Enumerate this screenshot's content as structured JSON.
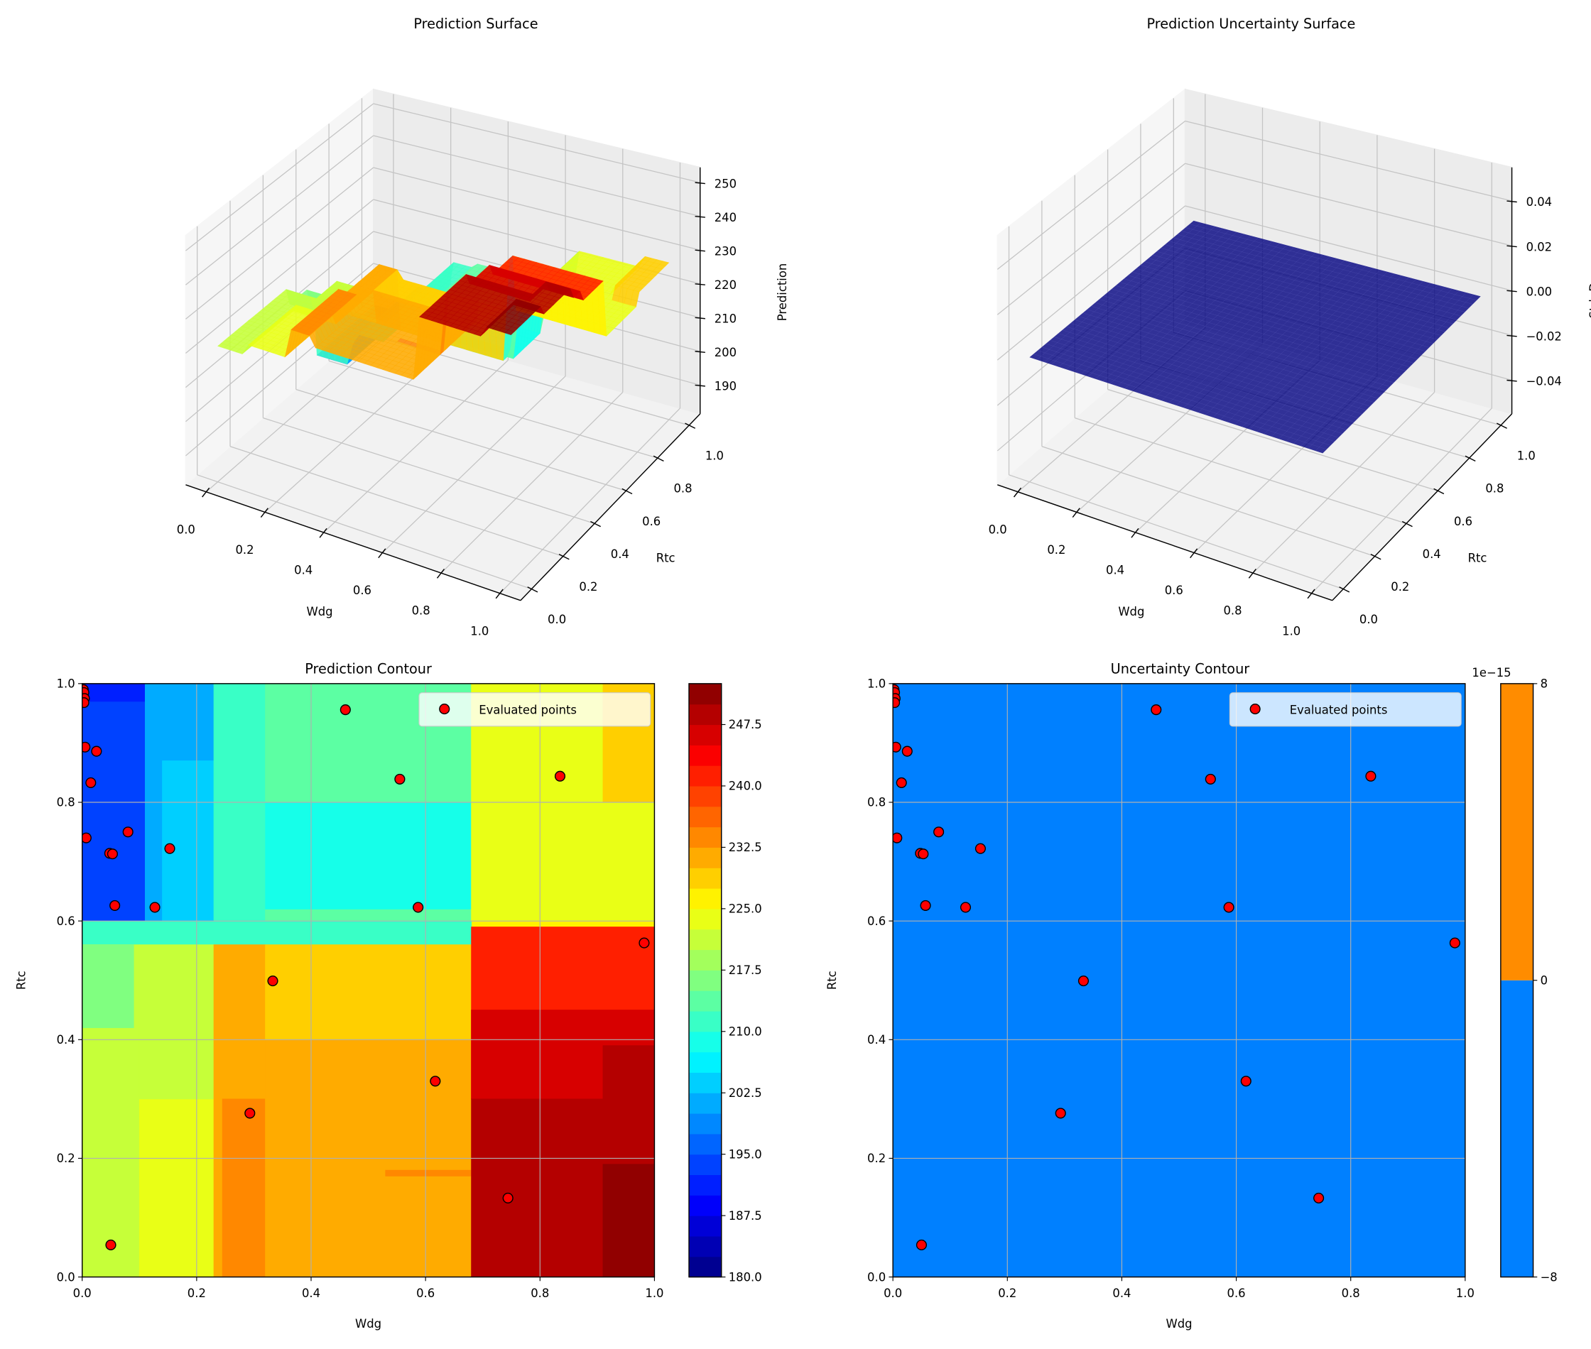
{
  "chart_data": [
    {
      "type": "surface3d",
      "title": "Prediction Surface",
      "xlabel": "Wdg",
      "ylabel": "Rtc",
      "zlabel": "Prediction",
      "xticks": [
        "0.0",
        "0.2",
        "0.4",
        "0.6",
        "0.8",
        "1.0"
      ],
      "yticks": [
        "0.0",
        "0.2",
        "0.4",
        "0.6",
        "0.8",
        "1.0"
      ],
      "ztick_values": [
        190,
        200,
        210,
        220,
        230,
        240,
        250
      ],
      "zticks": [
        "190",
        "200",
        "210",
        "220",
        "230",
        "240",
        "250"
      ],
      "zlim": [
        181.5,
        254.5
      ],
      "colormap": "jet",
      "surface": "same prediction field as Prediction Contour"
    },
    {
      "type": "surface3d",
      "title": "Prediction Uncertainty Surface",
      "xlabel": "Wdg",
      "ylabel": "Rtc",
      "zlabel": "Std. Dev.",
      "xticks": [
        "0.0",
        "0.2",
        "0.4",
        "0.6",
        "0.8",
        "1.0"
      ],
      "yticks": [
        "0.0",
        "0.2",
        "0.4",
        "0.6",
        "0.8",
        "1.0"
      ],
      "ztick_values": [
        -0.04,
        -0.02,
        0.0,
        0.02,
        0.04
      ],
      "zticks": [
        "−0.04",
        "−0.02",
        "0.00",
        "0.02",
        "0.04"
      ],
      "zlim": [
        -0.055,
        0.055
      ],
      "surface_value": 0.0,
      "surface_color": "#000080"
    },
    {
      "type": "contour",
      "title": "Prediction Contour",
      "xlabel": "Wdg",
      "ylabel": "Rtc",
      "xlim": [
        0,
        1
      ],
      "ylim": [
        0,
        1
      ],
      "xticks": [
        "0.0",
        "0.2",
        "0.4",
        "0.6",
        "0.8",
        "1.0"
      ],
      "yticks": [
        "0.0",
        "0.2",
        "0.4",
        "0.6",
        "0.8",
        "1.0"
      ],
      "grid": true,
      "colormap": "jet",
      "levels": {
        "min": 180,
        "max": 252.5,
        "step": 2.5
      },
      "colorbar_tick_values": [
        180,
        187.5,
        195,
        202.5,
        210,
        217.5,
        225,
        232.5,
        240,
        247.5
      ],
      "colorbar_ticks": [
        "180.0",
        "187.5",
        "195.0",
        "202.5",
        "210.0",
        "217.5",
        "225.0",
        "232.5",
        "240.0",
        "247.5"
      ],
      "regions": [
        {
          "wdg": [
            0,
            1
          ],
          "rtc": [
            0,
            1
          ],
          "value": 225
        },
        {
          "wdg": [
            0,
            0.68
          ],
          "rtc": [
            0.56,
            0.6
          ],
          "value": 211
        },
        {
          "wdg": [
            0,
            0.11
          ],
          "rtc": [
            0.6,
            1
          ],
          "value": 193.6
        },
        {
          "wdg": [
            0,
            0.11
          ],
          "rtc": [
            0.97,
            1
          ],
          "value": 190
        },
        {
          "wdg": [
            0.11,
            0.23
          ],
          "rtc": [
            0.6,
            1
          ],
          "value": 200.5
        },
        {
          "wdg": [
            0.14,
            0.23
          ],
          "rtc": [
            0.6,
            0.87
          ],
          "value": 203.6
        },
        {
          "wdg": [
            0.23,
            0.32
          ],
          "rtc": [
            0.6,
            1
          ],
          "value": 211
        },
        {
          "wdg": [
            0.32,
            0.68
          ],
          "rtc": [
            0.6,
            1
          ],
          "value": 212.5
        },
        {
          "wdg": [
            0.32,
            0.68
          ],
          "rtc": [
            0.62,
            0.8
          ],
          "value": 208.8
        },
        {
          "wdg": [
            0.68,
            1
          ],
          "rtc": [
            0.6,
            1
          ],
          "value": 224.5
        },
        {
          "wdg": [
            0.91,
            1
          ],
          "rtc": [
            0.8,
            1
          ],
          "value": 228
        },
        {
          "wdg": [
            0,
            0.1
          ],
          "rtc": [
            0,
            0.56
          ],
          "value": 221.3
        },
        {
          "wdg": [
            0,
            0.09
          ],
          "rtc": [
            0.42,
            0.56
          ],
          "value": 216
        },
        {
          "wdg": [
            0.1,
            0.23
          ],
          "rtc": [
            0,
            0.3
          ],
          "value": 224.5
        },
        {
          "wdg": [
            0.1,
            0.23
          ],
          "rtc": [
            0.3,
            0.56
          ],
          "value": 221.3
        },
        {
          "wdg": [
            0.23,
            0.32
          ],
          "rtc": [
            0,
            0.56
          ],
          "value": 230
        },
        {
          "wdg": [
            0.245,
            0.32
          ],
          "rtc": [
            0,
            0.3
          ],
          "value": 233
        },
        {
          "wdg": [
            0.32,
            0.68
          ],
          "rtc": [
            0.4,
            0.56
          ],
          "value": 227.5
        },
        {
          "wdg": [
            0.32,
            0.68
          ],
          "rtc": [
            0,
            0.4
          ],
          "value": 230
        },
        {
          "wdg": [
            0.53,
            0.68
          ],
          "rtc": [
            0.17,
            0.18
          ],
          "value": 233
        },
        {
          "wdg": [
            0.68,
            1
          ],
          "rtc": [
            0.3,
            0.59
          ],
          "value": 241.5
        },
        {
          "wdg": [
            0.68,
            1
          ],
          "rtc": [
            0.3,
            0.45
          ],
          "value": 245
        },
        {
          "wdg": [
            0.68,
            1
          ],
          "rtc": [
            0,
            0.3
          ],
          "value": 248.5
        },
        {
          "wdg": [
            0.91,
            1
          ],
          "rtc": [
            0.3,
            0.39
          ],
          "value": 248.5
        },
        {
          "wdg": [
            0.91,
            1
          ],
          "rtc": [
            0,
            0.19
          ],
          "value": 251.6
        }
      ],
      "legend": {
        "label": "Evaluated points",
        "position": "upper right"
      },
      "points": [
        [
          0.002,
          0.99
        ],
        [
          0.003,
          0.985
        ],
        [
          0.004,
          0.975
        ],
        [
          0.003,
          0.968
        ],
        [
          0.005,
          0.893
        ],
        [
          0.025,
          0.886
        ],
        [
          0.015,
          0.833
        ],
        [
          0.007,
          0.74
        ],
        [
          0.08,
          0.75
        ],
        [
          0.048,
          0.714
        ],
        [
          0.053,
          0.713
        ],
        [
          0.153,
          0.722
        ],
        [
          0.057,
          0.626
        ],
        [
          0.127,
          0.623
        ],
        [
          0.46,
          0.956
        ],
        [
          0.555,
          0.839
        ],
        [
          0.835,
          0.844
        ],
        [
          0.587,
          0.623
        ],
        [
          0.982,
          0.563
        ],
        [
          0.333,
          0.499
        ],
        [
          0.617,
          0.33
        ],
        [
          0.293,
          0.276
        ],
        [
          0.744,
          0.133
        ],
        [
          0.05,
          0.054
        ]
      ],
      "point_color": "#ff0000"
    },
    {
      "type": "contour",
      "title": "Uncertainty Contour",
      "xlabel": "Wdg",
      "ylabel": "Rtc",
      "xlim": [
        0,
        1
      ],
      "ylim": [
        0,
        1
      ],
      "xticks": [
        "0.0",
        "0.2",
        "0.4",
        "0.6",
        "0.8",
        "1.0"
      ],
      "yticks": [
        "0.0",
        "0.2",
        "0.4",
        "0.6",
        "0.8",
        "1.0"
      ],
      "grid": true,
      "field_value": 0.0,
      "levels": [
        -8e-15,
        0,
        8e-15
      ],
      "level_colors": [
        "#0080ff",
        "#ff8c00"
      ],
      "colorbar_ticks": [
        "−8",
        "0",
        "8"
      ],
      "colorbar_offset": "1e−15",
      "legend": {
        "label": "Evaluated points",
        "position": "upper right"
      }
    }
  ]
}
